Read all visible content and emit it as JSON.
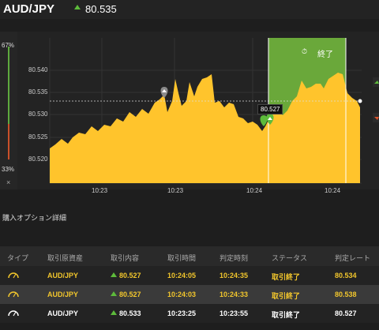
{
  "header": {
    "pair": "AUD/JPY",
    "price": "80.535",
    "direction_icon": "arrow-up-icon"
  },
  "sidebar": {
    "top_pct": "67%",
    "bottom_pct": "33%",
    "close": "×"
  },
  "chart": {
    "y_ticks": [
      "80.540",
      "80.535",
      "80.530",
      "80.525",
      "80.520"
    ],
    "x_ticks": [
      "10:23",
      "10:23",
      "10:24",
      "10:24"
    ],
    "expire_label": "終了",
    "entry_callout": "80.527",
    "colors": {
      "area": "#ffc42c",
      "expiry_zone": "#6aa83a",
      "bg": "#232323"
    }
  },
  "chart_data": {
    "type": "area",
    "yticks": [
      80.54,
      80.535,
      80.53,
      80.525,
      80.52
    ],
    "xticks": [
      "10:23",
      "10:23",
      "10:24",
      "10:24"
    ],
    "current_price": 80.535,
    "entry_price": 80.527
  },
  "details": {
    "title": "購入オプション詳細",
    "columns": [
      "タイプ",
      "取引原資産",
      "取引内容",
      "取引時間",
      "判定時刻",
      "ステータス",
      "判定レート"
    ],
    "rows": [
      {
        "asset": "AUD/JPY",
        "content": "80.527",
        "time": "10:24:05",
        "judge": "10:24:35",
        "status": "取引終了",
        "rate": "80.534"
      },
      {
        "asset": "AUD/JPY",
        "content": "80.527",
        "time": "10:24:03",
        "judge": "10:24:33",
        "status": "取引終了",
        "rate": "80.538"
      },
      {
        "asset": "AUD/JPY",
        "content": "80.533",
        "time": "10:23:25",
        "judge": "10:23:55",
        "status": "取引終了",
        "rate": "80.527"
      }
    ]
  }
}
